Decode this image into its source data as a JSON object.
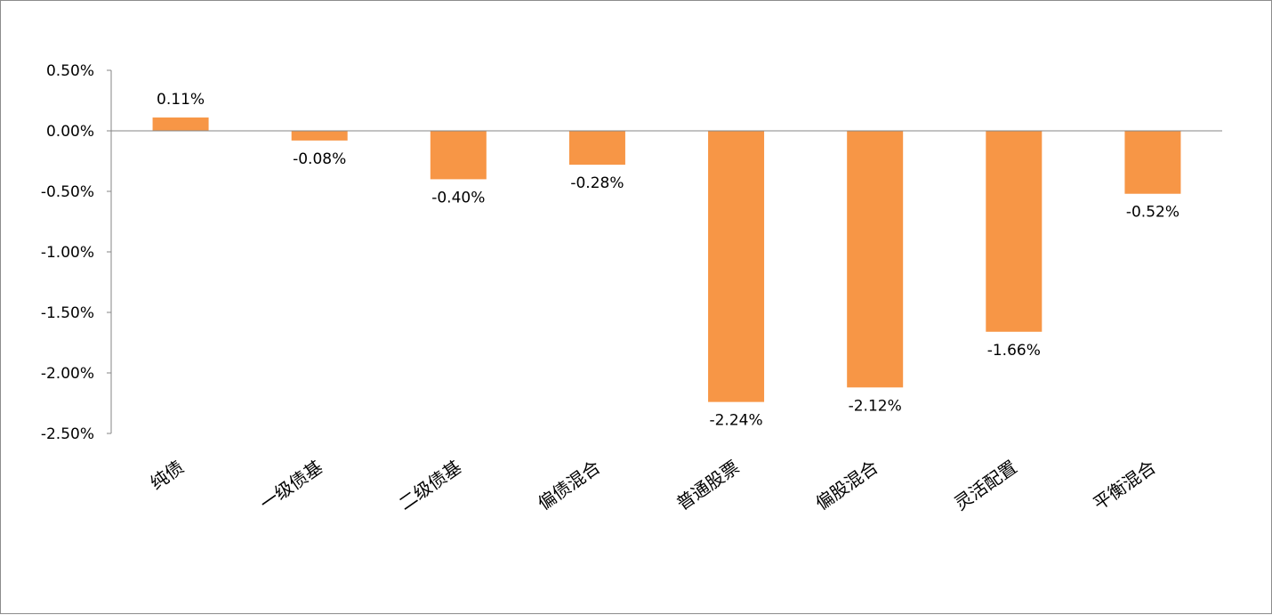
{
  "chart_data": {
    "type": "bar",
    "title": "",
    "xlabel": "",
    "ylabel": "",
    "categories": [
      "纯债",
      "一级债基",
      "二级债基",
      "偏债混合",
      "普通股票",
      "偏股混合",
      "灵活配置",
      "平衡混合"
    ],
    "series": [
      {
        "values": [
          0.11,
          -0.08,
          -0.4,
          -0.28,
          -2.24,
          -2.12,
          -1.66,
          -0.52
        ],
        "color": "#F79646"
      }
    ],
    "data_labels": [
      "0.11%",
      "-0.08%",
      "-0.40%",
      "-0.28%",
      "-2.24%",
      "-2.12%",
      "-1.66%",
      "-0.52%"
    ],
    "ylim": [
      -2.5,
      0.5
    ],
    "yticks": [
      0.5,
      0.0,
      -0.5,
      -1.0,
      -1.5,
      -2.0,
      -2.5
    ],
    "ytick_labels": [
      "0.50%",
      "0.00%",
      "-0.50%",
      "-1.00%",
      "-1.50%",
      "-2.00%",
      "-2.50%"
    ],
    "grid": false,
    "legend": "none"
  }
}
